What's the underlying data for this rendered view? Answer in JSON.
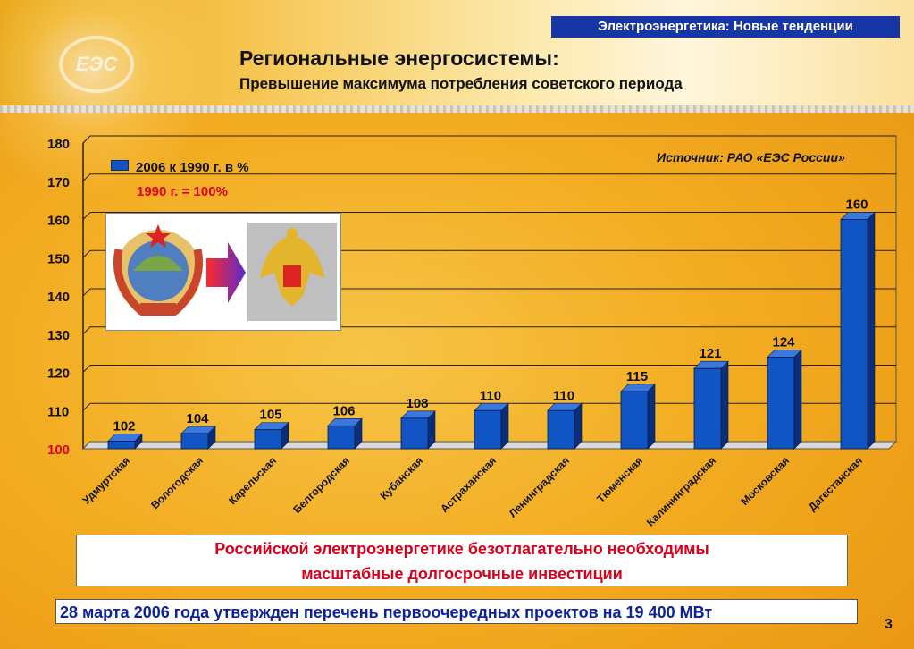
{
  "header": {
    "section_tag": "Электроэнергетика: Новые тенденции",
    "title": "Региональные энергосистемы:",
    "subtitle": "Превышение максимума потребления советского периода",
    "logo_text": "ЕЭС"
  },
  "chart_data": {
    "type": "bar",
    "categories": [
      "Удмуртская",
      "Вологодская",
      "Карельская",
      "Белгородская",
      "Кубанская",
      "Астраханская",
      "Ленинградская",
      "Тюменская",
      "Калининградская",
      "Московская",
      "Дагестанская"
    ],
    "series": [
      {
        "name": "2006 к 1990 г. в %",
        "values": [
          102,
          104,
          105,
          106,
          108,
          110,
          110,
          115,
          121,
          124,
          160
        ],
        "color": "#1154c4"
      }
    ],
    "ylim": [
      100,
      180
    ],
    "yticks": [
      "100",
      "110",
      "120",
      "130",
      "140",
      "150",
      "160",
      "170",
      "180"
    ],
    "grid": true,
    "base_note": "1990 г. = 100%",
    "source": "Источник: РАО «ЕЭС России»",
    "legend_position": "top-left"
  },
  "callout": {
    "line1": "Российской электроэнергетике безотлагательно необходимы",
    "line2": "масштабные долгосрочные инвестиции"
  },
  "footer": {
    "text": "28 марта 2006 года утвержден перечень первоочередных проектов на 19 400 МВт",
    "page_number": "3"
  },
  "colors": {
    "accent_blue": "#1636a6",
    "bar_blue": "#1154c4",
    "alert_red": "#e0001a"
  }
}
